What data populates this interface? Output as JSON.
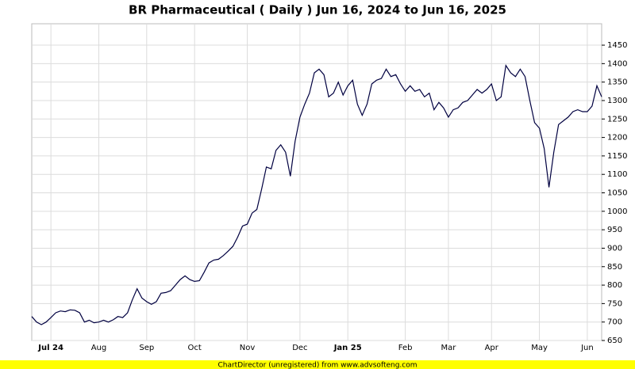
{
  "chart_data": {
    "type": "line",
    "title": "BR Pharmaceutical ( Daily ) Jun 16, 2024 to Jun 16, 2025",
    "footer": "ChartDirector (unregistered) from www.advsofteng.com",
    "categories": [
      null,
      null,
      null,
      null,
      "Jul 24",
      null,
      null,
      null,
      null,
      null,
      null,
      null,
      null,
      null,
      "Aug",
      null,
      null,
      null,
      null,
      null,
      null,
      null,
      null,
      null,
      "Sep",
      null,
      null,
      null,
      null,
      null,
      null,
      null,
      null,
      null,
      "Oct",
      null,
      null,
      null,
      null,
      null,
      null,
      null,
      null,
      null,
      null,
      "Nov",
      null,
      null,
      null,
      null,
      null,
      null,
      null,
      null,
      null,
      null,
      "Dec",
      null,
      null,
      null,
      null,
      null,
      null,
      null,
      null,
      null,
      "Jan 25",
      null,
      null,
      null,
      null,
      null,
      null,
      null,
      null,
      null,
      null,
      null,
      "Feb",
      null,
      null,
      null,
      null,
      null,
      null,
      null,
      null,
      "Mar",
      null,
      null,
      null,
      null,
      null,
      null,
      null,
      null,
      "Apr",
      null,
      null,
      null,
      null,
      null,
      null,
      null,
      null,
      null,
      "May",
      null,
      null,
      null,
      null,
      null,
      null,
      null,
      null,
      null,
      "Jun",
      null,
      null,
      null
    ],
    "series": [
      {
        "name": "BR Pharmaceutical",
        "color": "#000040",
        "values": [
          715,
          700,
          693,
          700,
          712,
          725,
          730,
          728,
          733,
          732,
          725,
          700,
          705,
          698,
          700,
          705,
          700,
          706,
          715,
          712,
          725,
          760,
          790,
          765,
          755,
          748,
          755,
          778,
          780,
          785,
          800,
          815,
          825,
          815,
          810,
          812,
          835,
          860,
          868,
          870,
          880,
          892,
          905,
          930,
          960,
          965,
          995,
          1005,
          1060,
          1120,
          1115,
          1165,
          1180,
          1160,
          1095,
          1190,
          1255,
          1290,
          1320,
          1375,
          1385,
          1370,
          1310,
          1320,
          1350,
          1315,
          1340,
          1355,
          1290,
          1260,
          1290,
          1345,
          1355,
          1360,
          1385,
          1365,
          1370,
          1345,
          1325,
          1340,
          1325,
          1330,
          1310,
          1320,
          1275,
          1295,
          1280,
          1255,
          1275,
          1280,
          1295,
          1300,
          1315,
          1330,
          1320,
          1330,
          1345,
          1300,
          1310,
          1395,
          1375,
          1365,
          1385,
          1365,
          1300,
          1240,
          1225,
          1170,
          1065,
          1160,
          1235,
          1245,
          1255,
          1270,
          1275,
          1270,
          1270,
          1285,
          1340,
          1310
        ]
      }
    ],
    "ylim": [
      650,
      1508
    ],
    "yticks": [
      650,
      700,
      750,
      800,
      850,
      900,
      950,
      1000,
      1050,
      1100,
      1150,
      1200,
      1250,
      1300,
      1350,
      1400,
      1450
    ],
    "grid": true
  }
}
